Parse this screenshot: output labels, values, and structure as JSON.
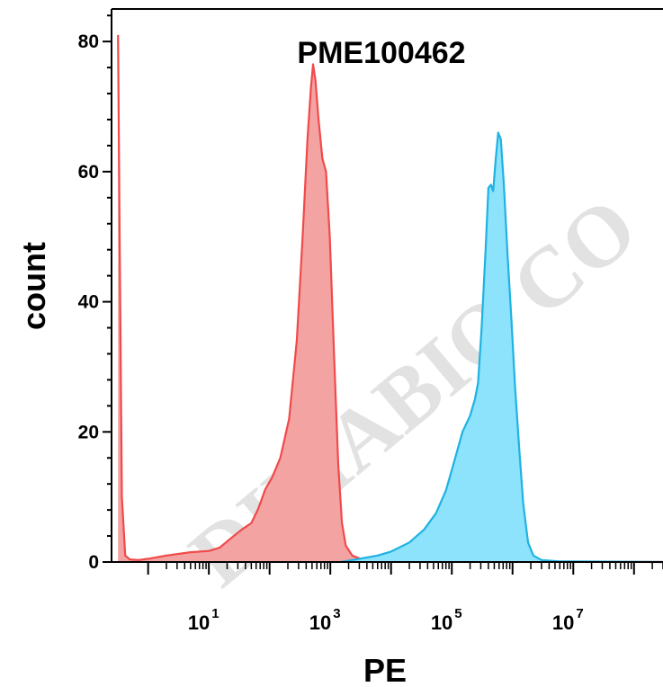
{
  "chart_data": {
    "type": "area",
    "title": "PME100462",
    "xlabel": "PE",
    "ylabel": "count",
    "x_scale": "log10",
    "xlim": [
      0.25,
      300000000
    ],
    "ylim": [
      0,
      85
    ],
    "y_ticks": [
      0,
      20,
      40,
      60,
      80
    ],
    "x_ticks": [
      {
        "value": 10,
        "base": "10",
        "exp": "1"
      },
      {
        "value": 1000,
        "base": "10",
        "exp": "3"
      },
      {
        "value": 100000,
        "base": "10",
        "exp": "5"
      },
      {
        "value": 10000000,
        "base": "10",
        "exp": "7"
      }
    ],
    "grid": false,
    "legend": "none",
    "watermark": "DIMABIO CO",
    "series": [
      {
        "color": "#f04a4a",
        "fill": "#f4a3a3",
        "points": [
          [
            0.32,
            81
          ],
          [
            0.34,
            50
          ],
          [
            0.37,
            10
          ],
          [
            0.42,
            1
          ],
          [
            0.5,
            0.4
          ],
          [
            0.7,
            0.3
          ],
          [
            1.0,
            0.5
          ],
          [
            2,
            1
          ],
          [
            5,
            1.5
          ],
          [
            10,
            1.7
          ],
          [
            15,
            2.2
          ],
          [
            22,
            3.5
          ],
          [
            35,
            5
          ],
          [
            50,
            6
          ],
          [
            65,
            8.2
          ],
          [
            85,
            11.2
          ],
          [
            110,
            13
          ],
          [
            150,
            16
          ],
          [
            210,
            22
          ],
          [
            280,
            34
          ],
          [
            350,
            50
          ],
          [
            420,
            65
          ],
          [
            480,
            73
          ],
          [
            520,
            76.5
          ],
          [
            570,
            74
          ],
          [
            640,
            68
          ],
          [
            740,
            62
          ],
          [
            850,
            60
          ],
          [
            980,
            50
          ],
          [
            1150,
            32
          ],
          [
            1350,
            15
          ],
          [
            1550,
            6
          ],
          [
            1800,
            2.5
          ],
          [
            2300,
            1
          ],
          [
            3500,
            0.3
          ],
          [
            6000,
            0.1
          ],
          [
            300000000,
            0
          ]
        ]
      },
      {
        "color": "#1fb2e2",
        "fill": "#8de3fb",
        "points": [
          [
            1500,
            0
          ],
          [
            3000,
            0.5
          ],
          [
            6000,
            1
          ],
          [
            10000,
            1.6
          ],
          [
            20000,
            3
          ],
          [
            35000,
            5
          ],
          [
            55000,
            7.5
          ],
          [
            80000,
            11
          ],
          [
            110000,
            15.5
          ],
          [
            150000,
            20
          ],
          [
            200000,
            22.5
          ],
          [
            240000,
            25
          ],
          [
            270000,
            27.5
          ],
          [
            310000,
            36
          ],
          [
            360000,
            48
          ],
          [
            400000,
            57.5
          ],
          [
            440000,
            58
          ],
          [
            480000,
            57
          ],
          [
            530000,
            62
          ],
          [
            580000,
            66
          ],
          [
            640000,
            65
          ],
          [
            720000,
            58
          ],
          [
            830000,
            47
          ],
          [
            960000,
            37
          ],
          [
            1100000,
            27
          ],
          [
            1300000,
            17
          ],
          [
            1500000,
            9
          ],
          [
            1800000,
            3
          ],
          [
            2200000,
            1
          ],
          [
            3000000,
            0.3
          ],
          [
            6000000,
            0.1
          ],
          [
            300000000,
            0
          ]
        ]
      }
    ]
  }
}
